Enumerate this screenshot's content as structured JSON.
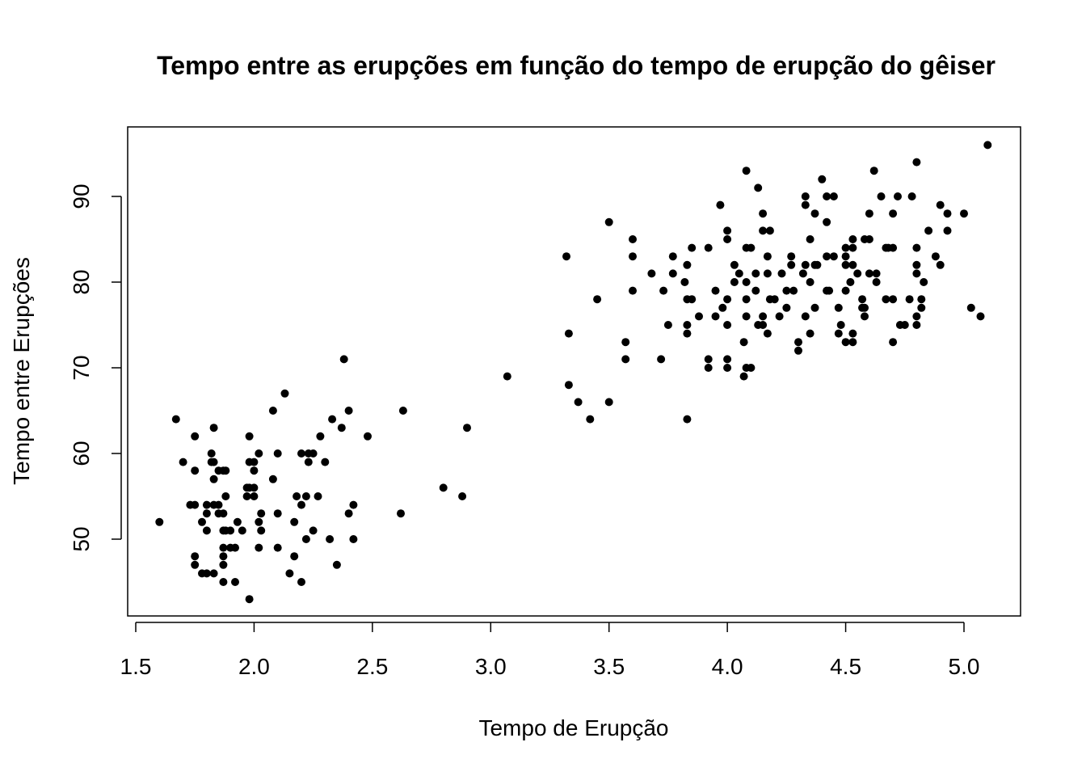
{
  "chart_data": {
    "type": "scatter",
    "title": "Tempo entre as erupções em função do tempo de erupção do gêiser",
    "xlabel": "Tempo de Erupção",
    "ylabel": "Tempo entre Erupções",
    "xlim": [
      1.5,
      5.2
    ],
    "ylim": [
      40.5,
      97
    ],
    "xticks": [
      1.5,
      2.0,
      2.5,
      3.0,
      3.5,
      4.0,
      4.5,
      5.0
    ],
    "xtick_labels": [
      "1.5",
      "2.0",
      "2.5",
      "3.0",
      "3.5",
      "4.0",
      "4.5",
      "5.0"
    ],
    "yticks": [
      50,
      60,
      70,
      80,
      90
    ],
    "ytick_labels": [
      "50",
      "60",
      "70",
      "80",
      "90"
    ],
    "grid": false,
    "marker_color": "#000000",
    "points": [
      [
        1.6,
        52
      ],
      [
        1.67,
        64
      ],
      [
        1.7,
        59
      ],
      [
        1.73,
        54
      ],
      [
        1.75,
        54
      ],
      [
        1.75,
        62
      ],
      [
        1.75,
        58
      ],
      [
        1.75,
        48
      ],
      [
        1.75,
        47
      ],
      [
        1.78,
        52
      ],
      [
        1.78,
        46
      ],
      [
        1.8,
        54
      ],
      [
        1.8,
        53
      ],
      [
        1.8,
        51
      ],
      [
        1.8,
        46
      ],
      [
        1.82,
        60
      ],
      [
        1.82,
        59
      ],
      [
        1.83,
        59
      ],
      [
        1.83,
        63
      ],
      [
        1.83,
        57
      ],
      [
        1.83,
        54
      ],
      [
        1.83,
        46
      ],
      [
        1.85,
        58
      ],
      [
        1.85,
        54
      ],
      [
        1.85,
        53
      ],
      [
        1.87,
        58
      ],
      [
        1.87,
        53
      ],
      [
        1.87,
        51
      ],
      [
        1.87,
        49
      ],
      [
        1.87,
        48
      ],
      [
        1.87,
        47
      ],
      [
        1.87,
        45
      ],
      [
        1.88,
        58
      ],
      [
        1.88,
        55
      ],
      [
        1.88,
        51
      ],
      [
        1.9,
        51
      ],
      [
        1.9,
        49
      ],
      [
        1.92,
        49
      ],
      [
        1.92,
        45
      ],
      [
        1.93,
        52
      ],
      [
        1.95,
        51
      ],
      [
        1.97,
        56
      ],
      [
        1.97,
        55
      ],
      [
        1.98,
        62
      ],
      [
        1.98,
        59
      ],
      [
        1.98,
        56
      ],
      [
        1.98,
        43
      ],
      [
        2.0,
        59
      ],
      [
        2.0,
        58
      ],
      [
        2.0,
        56
      ],
      [
        2.0,
        55
      ],
      [
        2.02,
        60
      ],
      [
        2.02,
        52
      ],
      [
        2.02,
        49
      ],
      [
        2.03,
        53
      ],
      [
        2.03,
        51
      ],
      [
        2.08,
        65
      ],
      [
        2.08,
        57
      ],
      [
        2.1,
        60
      ],
      [
        2.1,
        53
      ],
      [
        2.1,
        49
      ],
      [
        2.13,
        67
      ],
      [
        2.15,
        46
      ],
      [
        2.17,
        52
      ],
      [
        2.17,
        48
      ],
      [
        2.18,
        55
      ],
      [
        2.2,
        60
      ],
      [
        2.2,
        54
      ],
      [
        2.2,
        45
      ],
      [
        2.22,
        55
      ],
      [
        2.22,
        50
      ],
      [
        2.23,
        60
      ],
      [
        2.23,
        59
      ],
      [
        2.25,
        60
      ],
      [
        2.25,
        51
      ],
      [
        2.27,
        55
      ],
      [
        2.28,
        62
      ],
      [
        2.3,
        59
      ],
      [
        2.32,
        50
      ],
      [
        2.33,
        64
      ],
      [
        2.35,
        47
      ],
      [
        2.37,
        63
      ],
      [
        2.38,
        71
      ],
      [
        2.4,
        65
      ],
      [
        2.4,
        53
      ],
      [
        2.42,
        54
      ],
      [
        2.42,
        50
      ],
      [
        2.48,
        62
      ],
      [
        2.62,
        53
      ],
      [
        2.63,
        65
      ],
      [
        2.8,
        56
      ],
      [
        2.88,
        55
      ],
      [
        2.9,
        63
      ],
      [
        3.07,
        69
      ],
      [
        3.32,
        83
      ],
      [
        3.33,
        74
      ],
      [
        3.33,
        68
      ],
      [
        3.37,
        66
      ],
      [
        3.42,
        64
      ],
      [
        3.45,
        78
      ],
      [
        3.5,
        87
      ],
      [
        3.5,
        66
      ],
      [
        3.57,
        73
      ],
      [
        3.57,
        71
      ],
      [
        3.6,
        85
      ],
      [
        3.6,
        83
      ],
      [
        3.6,
        79
      ],
      [
        3.68,
        81
      ],
      [
        3.72,
        71
      ],
      [
        3.73,
        79
      ],
      [
        3.75,
        75
      ],
      [
        3.77,
        83
      ],
      [
        3.77,
        81
      ],
      [
        3.82,
        80
      ],
      [
        3.83,
        82
      ],
      [
        3.83,
        78
      ],
      [
        3.83,
        75
      ],
      [
        3.83,
        74
      ],
      [
        3.83,
        64
      ],
      [
        3.85,
        84
      ],
      [
        3.85,
        78
      ],
      [
        3.88,
        76
      ],
      [
        3.92,
        84
      ],
      [
        3.92,
        71
      ],
      [
        3.92,
        70
      ],
      [
        3.95,
        79
      ],
      [
        3.95,
        76
      ],
      [
        3.97,
        89
      ],
      [
        3.98,
        77
      ],
      [
        4.0,
        86
      ],
      [
        4.0,
        85
      ],
      [
        4.0,
        78
      ],
      [
        4.0,
        75
      ],
      [
        4.0,
        71
      ],
      [
        4.0,
        70
      ],
      [
        4.03,
        82
      ],
      [
        4.03,
        80
      ],
      [
        4.05,
        81
      ],
      [
        4.07,
        73
      ],
      [
        4.07,
        69
      ],
      [
        4.08,
        93
      ],
      [
        4.08,
        84
      ],
      [
        4.08,
        80
      ],
      [
        4.08,
        78
      ],
      [
        4.08,
        76
      ],
      [
        4.08,
        70
      ],
      [
        4.1,
        84
      ],
      [
        4.1,
        70
      ],
      [
        4.12,
        81
      ],
      [
        4.12,
        79
      ],
      [
        4.13,
        91
      ],
      [
        4.13,
        75
      ],
      [
        4.15,
        88
      ],
      [
        4.15,
        86
      ],
      [
        4.15,
        76
      ],
      [
        4.15,
        75
      ],
      [
        4.17,
        83
      ],
      [
        4.17,
        81
      ],
      [
        4.17,
        74
      ],
      [
        4.18,
        86
      ],
      [
        4.18,
        78
      ],
      [
        4.2,
        78
      ],
      [
        4.22,
        76
      ],
      [
        4.23,
        81
      ],
      [
        4.25,
        79
      ],
      [
        4.25,
        77
      ],
      [
        4.27,
        83
      ],
      [
        4.27,
        82
      ],
      [
        4.28,
        79
      ],
      [
        4.3,
        73
      ],
      [
        4.3,
        72
      ],
      [
        4.32,
        81
      ],
      [
        4.33,
        90
      ],
      [
        4.33,
        89
      ],
      [
        4.33,
        82
      ],
      [
        4.33,
        76
      ],
      [
        4.35,
        85
      ],
      [
        4.35,
        80
      ],
      [
        4.35,
        74
      ],
      [
        4.37,
        88
      ],
      [
        4.37,
        82
      ],
      [
        4.37,
        77
      ],
      [
        4.38,
        82
      ],
      [
        4.4,
        92
      ],
      [
        4.42,
        90
      ],
      [
        4.42,
        87
      ],
      [
        4.42,
        83
      ],
      [
        4.42,
        79
      ],
      [
        4.43,
        79
      ],
      [
        4.45,
        90
      ],
      [
        4.45,
        83
      ],
      [
        4.47,
        77
      ],
      [
        4.47,
        74
      ],
      [
        4.48,
        75
      ],
      [
        4.5,
        84
      ],
      [
        4.5,
        83
      ],
      [
        4.5,
        82
      ],
      [
        4.5,
        79
      ],
      [
        4.5,
        73
      ],
      [
        4.52,
        80
      ],
      [
        4.53,
        85
      ],
      [
        4.53,
        84
      ],
      [
        4.53,
        82
      ],
      [
        4.53,
        74
      ],
      [
        4.53,
        73
      ],
      [
        4.55,
        81
      ],
      [
        4.57,
        78
      ],
      [
        4.57,
        77
      ],
      [
        4.58,
        85
      ],
      [
        4.58,
        77
      ],
      [
        4.58,
        76
      ],
      [
        4.6,
        85
      ],
      [
        4.6,
        88
      ],
      [
        4.6,
        81
      ],
      [
        4.62,
        93
      ],
      [
        4.63,
        81
      ],
      [
        4.63,
        80
      ],
      [
        4.65,
        90
      ],
      [
        4.67,
        84
      ],
      [
        4.67,
        78
      ],
      [
        4.68,
        84
      ],
      [
        4.7,
        88
      ],
      [
        4.7,
        84
      ],
      [
        4.7,
        78
      ],
      [
        4.7,
        73
      ],
      [
        4.72,
        90
      ],
      [
        4.73,
        75
      ],
      [
        4.75,
        75
      ],
      [
        4.77,
        78
      ],
      [
        4.78,
        90
      ],
      [
        4.8,
        94
      ],
      [
        4.8,
        84
      ],
      [
        4.8,
        82
      ],
      [
        4.8,
        81
      ],
      [
        4.8,
        76
      ],
      [
        4.8,
        75
      ],
      [
        4.82,
        78
      ],
      [
        4.82,
        77
      ],
      [
        4.83,
        80
      ],
      [
        4.85,
        86
      ],
      [
        4.88,
        83
      ],
      [
        4.9,
        89
      ],
      [
        4.9,
        82
      ],
      [
        4.93,
        88
      ],
      [
        4.93,
        86
      ],
      [
        5.0,
        88
      ],
      [
        5.03,
        77
      ],
      [
        5.07,
        76
      ],
      [
        5.1,
        96
      ]
    ]
  }
}
